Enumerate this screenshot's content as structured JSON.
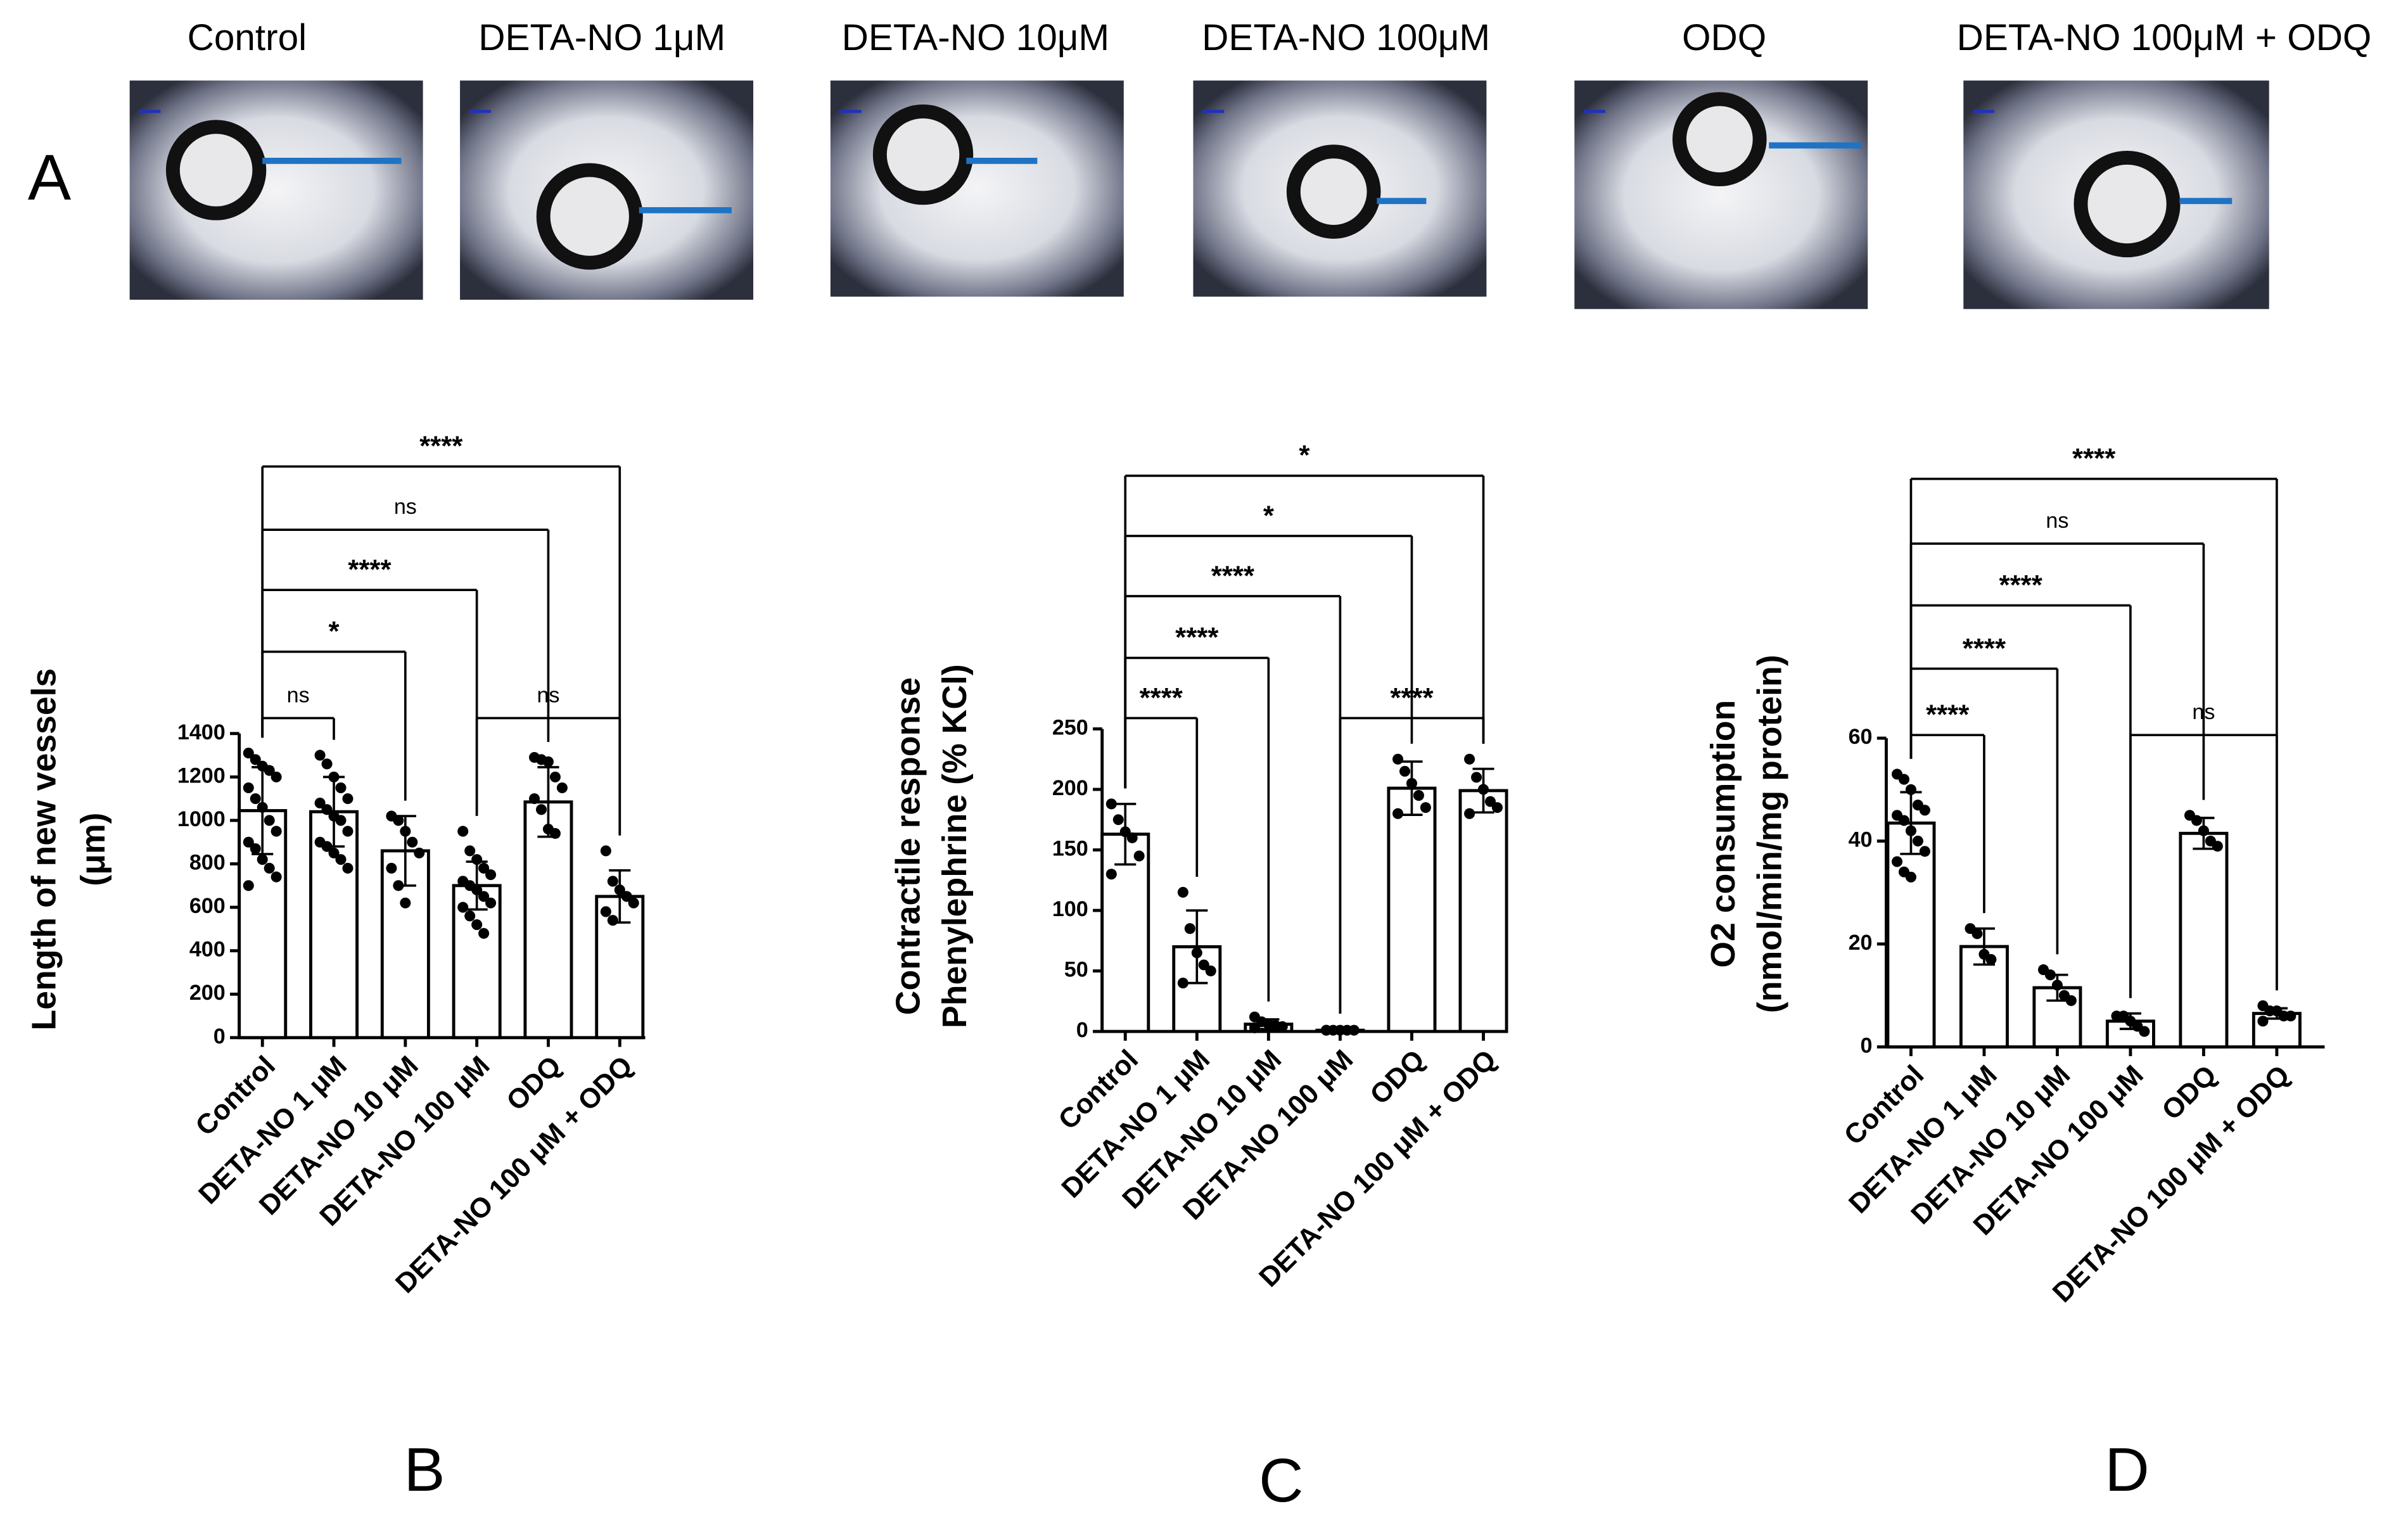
{
  "panel_a": {
    "label": "A",
    "images": [
      "Control",
      "DETA-NO 1μM",
      "DETA-NO 10μM",
      "DETA-NO 100μM",
      "ODQ",
      "DETA-NO 100μM + ODQ"
    ]
  },
  "chart_data": [
    {
      "type": "bar",
      "panel": "B",
      "y_label": [
        "Length of new vessels",
        "(μm)"
      ],
      "color": "#ffffff",
      "categories": [
        "Control",
        "DETA-NO 1 μM",
        "DETA-NO 10 μM",
        "DETA-NO 100 μM",
        "ODQ",
        "DETA-NO 100 μM  + ODQ"
      ],
      "values": [
        1045,
        1040,
        860,
        700,
        1085,
        650
      ],
      "errors": [
        200,
        160,
        160,
        110,
        160,
        120
      ],
      "points": [
        [
          1310,
          1280,
          1250,
          1230,
          1200,
          1150,
          1100,
          1060,
          1000,
          950,
          900,
          870,
          820,
          780,
          740,
          700
        ],
        [
          1300,
          1260,
          1200,
          1150,
          1100,
          1080,
          1050,
          1020,
          1000,
          950,
          900,
          880,
          850,
          820,
          780
        ],
        [
          1020,
          1000,
          950,
          900,
          850,
          780,
          700,
          620
        ],
        [
          950,
          860,
          820,
          780,
          750,
          720,
          700,
          680,
          650,
          620,
          600,
          560,
          520,
          480
        ],
        [
          1290,
          1280,
          1270,
          1200,
          1150,
          1100,
          1050,
          960,
          940
        ],
        [
          860,
          720,
          680,
          650,
          620,
          580,
          540
        ]
      ],
      "ylim": [
        0,
        1400
      ],
      "yticks": [
        0,
        200,
        400,
        600,
        800,
        1000,
        1200,
        1400
      ],
      "comparisons": [
        {
          "pair": [
            0,
            1
          ],
          "label": "ns"
        },
        {
          "pair": [
            0,
            2
          ],
          "label": "*"
        },
        {
          "pair": [
            0,
            3
          ],
          "label": "****"
        },
        {
          "pair": [
            0,
            4
          ],
          "label": "ns"
        },
        {
          "pair": [
            0,
            5
          ],
          "label": "****"
        },
        {
          "pair": [
            3,
            5
          ],
          "label": "ns"
        }
      ]
    },
    {
      "type": "bar",
      "panel": "C",
      "y_label": [
        "Contractile response",
        "Phenylephrine  (% KCl)"
      ],
      "color": "#ffffff",
      "categories": [
        "Control",
        "DETA-NO 1 μM",
        "DETA-NO 10 μM",
        "DETA-NO 100 μM",
        "ODQ",
        "DETA-NO 100 μM  + ODQ"
      ],
      "values": [
        163,
        70,
        6,
        1,
        201,
        199
      ],
      "errors": [
        25,
        30,
        4,
        1,
        22,
        18
      ],
      "points": [
        [
          188,
          175,
          165,
          160,
          145,
          130
        ],
        [
          115,
          85,
          65,
          55,
          50,
          40
        ],
        [
          12,
          8,
          6,
          5,
          4,
          3
        ],
        [
          1,
          1,
          1,
          1,
          1,
          1
        ],
        [
          225,
          215,
          205,
          195,
          185,
          180
        ],
        [
          225,
          210,
          200,
          190,
          185,
          180
        ]
      ],
      "ylim": [
        0,
        250
      ],
      "yticks": [
        0,
        50,
        100,
        150,
        200,
        250
      ],
      "comparisons": [
        {
          "pair": [
            0,
            1
          ],
          "label": "****"
        },
        {
          "pair": [
            0,
            2
          ],
          "label": "****"
        },
        {
          "pair": [
            0,
            3
          ],
          "label": "****"
        },
        {
          "pair": [
            0,
            4
          ],
          "label": "*"
        },
        {
          "pair": [
            0,
            5
          ],
          "label": "*"
        },
        {
          "pair": [
            3,
            5
          ],
          "label": "****"
        }
      ]
    },
    {
      "type": "bar",
      "panel": "D",
      "y_label": [
        "O2 consumption",
        "(nmol/min/mg protein)"
      ],
      "color": "#ffffff",
      "categories": [
        "Control",
        "DETA-NO 1 μM",
        "DETA-NO 10 μM",
        "DETA-NO 100 μM",
        "ODQ",
        "DETA-NO 100 μM  + ODQ"
      ],
      "values": [
        43.5,
        19.5,
        11.5,
        5,
        41.5,
        6.5
      ],
      "errors": [
        6,
        3.5,
        2.5,
        1.5,
        3,
        1
      ],
      "points": [
        [
          53,
          52,
          50,
          47,
          46,
          45,
          44,
          42,
          40,
          38,
          36,
          34,
          33
        ],
        [
          23,
          22,
          18,
          17
        ],
        [
          15,
          14,
          12,
          10,
          9
        ],
        [
          6,
          6,
          5,
          4,
          3
        ],
        [
          45,
          44,
          42,
          40,
          39
        ],
        [
          8,
          7,
          7,
          6,
          6,
          5
        ]
      ],
      "ylim": [
        0,
        60
      ],
      "yticks": [
        0,
        20,
        40,
        60
      ],
      "comparisons": [
        {
          "pair": [
            0,
            1
          ],
          "label": "****"
        },
        {
          "pair": [
            0,
            2
          ],
          "label": "****"
        },
        {
          "pair": [
            0,
            3
          ],
          "label": "****"
        },
        {
          "pair": [
            0,
            4
          ],
          "label": "ns"
        },
        {
          "pair": [
            0,
            5
          ],
          "label": "****"
        },
        {
          "pair": [
            3,
            5
          ],
          "label": "ns"
        }
      ]
    }
  ]
}
